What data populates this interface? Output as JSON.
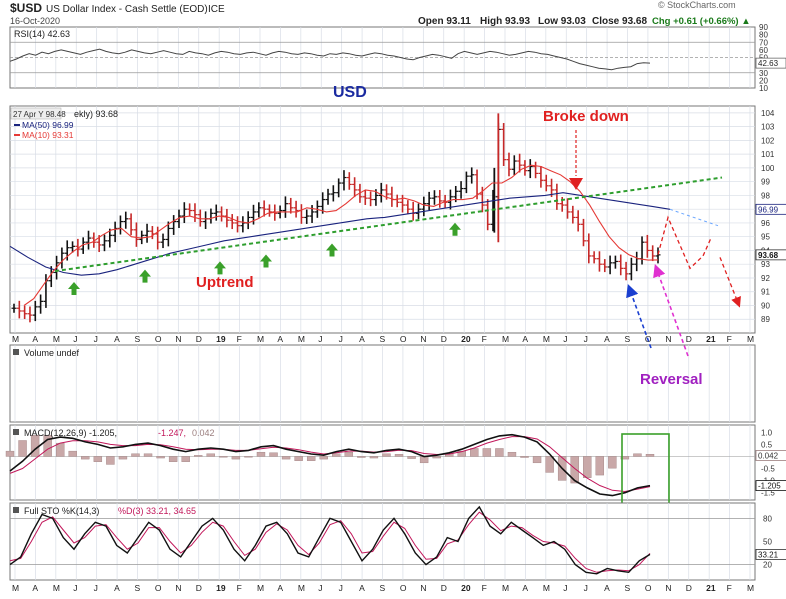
{
  "header": {
    "symbol": "$USD",
    "name": "US Dollar Index - Cash Settle (EOD)",
    "exchange": "ICE",
    "date": "16-Oct-2020",
    "open": "Open 93.11",
    "high": "High 93.93",
    "low": "Low 93.03",
    "close": "Close 93.68",
    "change": "Chg +0.61 (+0.66%) ▲",
    "watermark": "© StockCharts.com"
  },
  "colors": {
    "price_up": "#000000",
    "ma50": "#1a237e",
    "ma10": "#e53935",
    "uptrend_line": "#2e9e2e",
    "annotation_red": "#e02020",
    "arrow_green": "#3aa02a",
    "arrow_blue": "#1a3fd0",
    "arrow_magenta": "#e030d0",
    "macd_hist": "#c9a8a8",
    "box_green": "#3aa02a"
  },
  "chart_data": [
    {
      "type": "line",
      "panel": "rsi",
      "legend": "RSI(14) 42.63",
      "ylim": [
        10,
        90
      ],
      "ticks": [
        "90",
        "80",
        "70",
        "60",
        "50",
        "40",
        "30",
        "20",
        "10"
      ],
      "last_value_label": "42.63",
      "reference_lines": [
        70,
        50,
        30
      ],
      "values": [
        45,
        48,
        52,
        55,
        53,
        57,
        55,
        58,
        60,
        58,
        56,
        54,
        57,
        59,
        61,
        58,
        56,
        55,
        57,
        60,
        58,
        56,
        55,
        57,
        59,
        57,
        55,
        54,
        58,
        56,
        55,
        53,
        56,
        58,
        57,
        55,
        54,
        56,
        57,
        55,
        53,
        56,
        58,
        57,
        55,
        54,
        56,
        55,
        53,
        52,
        55,
        54,
        56,
        55,
        53,
        52,
        54,
        56,
        55,
        53,
        52,
        50,
        48,
        47,
        50,
        52,
        54,
        53,
        51,
        49,
        55,
        58,
        56,
        54,
        56,
        58,
        57,
        55,
        53,
        54,
        56,
        58,
        57,
        55,
        54,
        52,
        50,
        48,
        45,
        42,
        40,
        38,
        36,
        35,
        34,
        36,
        37,
        38,
        42,
        43,
        42.63
      ]
    },
    {
      "type": "bar",
      "panel": "price",
      "title": "USD",
      "legend_date": "27 Apr Y 98.48",
      "legend_weekly": "ekly) 93.68",
      "legend_ma50": "MA(50) 96.99",
      "legend_ma10": "MA(10) 93.31",
      "ylim": [
        88,
        104.5
      ],
      "ticks": [
        "104",
        "103",
        "102",
        "101",
        "100",
        "99",
        "98",
        "97",
        "96",
        "95",
        "94",
        "93",
        "92",
        "91",
        "90",
        "89"
      ],
      "last_price_label": "93.68",
      "ma50_label": "96.99",
      "x_labels": [
        "M",
        "A",
        "M",
        "J",
        "J",
        "A",
        "S",
        "O",
        "N",
        "D",
        "19",
        "F",
        "M",
        "A",
        "M",
        "J",
        "J",
        "A",
        "S",
        "O",
        "N",
        "D",
        "20",
        "F",
        "M",
        "A",
        "M",
        "J",
        "J",
        "A",
        "S",
        "O",
        "N",
        "D",
        "21",
        "F",
        "M"
      ],
      "closes": [
        89.8,
        89.6,
        89.4,
        89.3,
        89.9,
        90.3,
        91.8,
        92.4,
        93.1,
        93.8,
        94.2,
        94.3,
        94.1,
        94.6,
        94.9,
        94.6,
        94.4,
        94.7,
        95.1,
        95.6,
        96.1,
        96.3,
        95.5,
        94.8,
        95.1,
        95.4,
        95.2,
        94.6,
        94.8,
        95.6,
        96.1,
        96.5,
        97.0,
        96.9,
        96.6,
        96.1,
        96.3,
        96.7,
        96.8,
        96.5,
        96.2,
        96.0,
        95.8,
        96.0,
        96.4,
        96.8,
        97.1,
        97.0,
        96.8,
        96.7,
        96.9,
        97.4,
        97.1,
        96.9,
        96.4,
        96.5,
        96.8,
        97.2,
        97.7,
        98.1,
        98.2,
        98.9,
        99.3,
        98.8,
        98.4,
        97.9,
        97.8,
        97.7,
        98.0,
        98.4,
        98.1,
        97.7,
        97.5,
        97.3,
        97.0,
        96.7,
        97.0,
        97.4,
        97.8,
        97.9,
        97.6,
        97.5,
        97.9,
        98.3,
        98.5,
        99.4,
        99.5,
        98.1,
        97.3,
        95.9,
        97.9,
        102.8,
        100.6,
        99.9,
        100.5,
        100.2,
        99.8,
        100.1,
        99.6,
        99.1,
        98.7,
        98.4,
        97.4,
        97.3,
        96.8,
        96.4,
        95.9,
        94.7,
        93.6,
        93.4,
        93.0,
        92.8,
        93.1,
        93.2,
        92.7,
        92.3,
        93.0,
        93.4,
        94.6,
        94.0,
        93.6,
        93.68
      ],
      "ma50": [
        94.3,
        93.5,
        92.8,
        92.4,
        92.2,
        92.3,
        92.6,
        93.0,
        93.4,
        93.8,
        94.1,
        94.4,
        94.7,
        94.9,
        95.1,
        95.3,
        95.5,
        95.7,
        95.9,
        96.1,
        96.3,
        96.4,
        96.6,
        96.8,
        97.0,
        97.2,
        97.4,
        97.6,
        97.8,
        97.9,
        98.0,
        98.2,
        98.0,
        97.8,
        97.6,
        97.4,
        97.2,
        96.99
      ],
      "ma10": [
        90.0,
        90.5,
        91.5,
        92.5,
        93.3,
        93.9,
        94.4,
        94.6,
        95.1,
        95.5,
        95.6,
        95.0,
        94.9,
        95.0,
        95.5,
        96.0,
        96.4,
        96.5,
        96.3,
        96.3,
        96.5,
        96.4,
        96.1,
        96.0,
        96.3,
        96.7,
        96.8,
        96.8,
        96.8,
        97.1,
        97.0,
        96.8,
        96.9,
        97.4,
        98.0,
        98.4,
        98.3,
        97.9,
        97.7,
        97.8,
        97.6,
        97.3,
        97.2,
        97.5,
        97.7,
        97.7,
        97.8,
        98.3,
        98.9,
        98.9,
        99.3,
        99.9,
        100.2,
        100.1,
        99.8,
        99.5,
        99.0,
        98.3,
        97.3,
        96.1,
        95.0,
        94.2,
        93.7,
        93.4,
        93.3,
        93.31
      ],
      "annotations": [
        "Broke down",
        "Uptrend",
        "Reversal"
      ]
    },
    {
      "type": "bar",
      "panel": "volume",
      "legend": "Volume undef",
      "values": []
    },
    {
      "type": "line",
      "panel": "macd",
      "legend_prefix": "MACD(12,26,9) -1.205,",
      "legend_signal": "-1.247,",
      "legend_hist": "0.042",
      "ylim": [
        -1.8,
        1.3
      ],
      "ticks": [
        "1.0",
        "0.5",
        "0.0",
        "-0.5",
        "-1.0",
        "-1.5"
      ],
      "value_label_hist": "0.042",
      "value_label_macd": "-1.205",
      "macd": [
        -0.6,
        -0.2,
        0.3,
        0.7,
        0.8,
        0.75,
        0.6,
        0.5,
        0.35,
        0.4,
        0.5,
        0.55,
        0.45,
        0.3,
        0.2,
        0.3,
        0.35,
        0.3,
        0.2,
        0.25,
        0.4,
        0.45,
        0.3,
        0.2,
        0.1,
        0.05,
        0.2,
        0.3,
        0.2,
        0.15,
        0.25,
        0.3,
        0.2,
        0.0,
        0.05,
        0.15,
        0.3,
        0.5,
        0.7,
        0.85,
        0.9,
        0.8,
        0.6,
        0.1,
        -0.5,
        -1.0,
        -1.3,
        -1.55,
        -1.62,
        -1.5,
        -1.3,
        -1.205
      ],
      "signal": [
        -0.7,
        -0.5,
        -0.1,
        0.3,
        0.55,
        0.65,
        0.65,
        0.6,
        0.5,
        0.45,
        0.45,
        0.5,
        0.48,
        0.4,
        0.3,
        0.28,
        0.3,
        0.3,
        0.25,
        0.25,
        0.32,
        0.38,
        0.35,
        0.28,
        0.18,
        0.1,
        0.15,
        0.22,
        0.22,
        0.18,
        0.2,
        0.26,
        0.24,
        0.12,
        0.08,
        0.1,
        0.2,
        0.35,
        0.55,
        0.7,
        0.82,
        0.82,
        0.72,
        0.4,
        -0.05,
        -0.5,
        -0.9,
        -1.2,
        -1.4,
        -1.45,
        -1.35,
        -1.247
      ]
    },
    {
      "type": "line",
      "panel": "stochastic",
      "legend_prefix": "Full STO %K(14,3)",
      "legend_d": "%D(3) 33.21, 34.65",
      "ylim": [
        0,
        100
      ],
      "ticks": [
        "80",
        "50",
        "20"
      ],
      "reference_lines": [
        80,
        20
      ],
      "value_label": "33.21",
      "pct_k": [
        20,
        30,
        60,
        85,
        80,
        55,
        40,
        60,
        75,
        70,
        45,
        35,
        55,
        75,
        65,
        40,
        30,
        50,
        70,
        80,
        65,
        40,
        25,
        45,
        70,
        75,
        60,
        35,
        30,
        55,
        80,
        75,
        50,
        25,
        40,
        65,
        80,
        60,
        35,
        20,
        30,
        55,
        50,
        80,
        95,
        70,
        60,
        75,
        65,
        55,
        45,
        50,
        40,
        20,
        10,
        8,
        15,
        12,
        10,
        25,
        33.21
      ],
      "pct_d": [
        25,
        28,
        50,
        75,
        82,
        65,
        48,
        55,
        70,
        72,
        55,
        40,
        48,
        68,
        68,
        50,
        35,
        45,
        62,
        75,
        70,
        50,
        32,
        40,
        62,
        73,
        65,
        45,
        33,
        48,
        72,
        77,
        60,
        35,
        37,
        57,
        75,
        67,
        45,
        27,
        28,
        47,
        52,
        72,
        88,
        78,
        64,
        70,
        68,
        58,
        50,
        48,
        44,
        28,
        15,
        10,
        12,
        13,
        12,
        20,
        34.65
      ]
    }
  ],
  "x_axis_bottom": [
    "M",
    "A",
    "M",
    "J",
    "J",
    "A",
    "S",
    "O",
    "N",
    "D",
    "19",
    "F",
    "M",
    "A",
    "M",
    "J",
    "J",
    "A",
    "S",
    "O",
    "N",
    "D",
    "20",
    "F",
    "M",
    "A",
    "M",
    "J",
    "J",
    "A",
    "S",
    "O",
    "N",
    "D",
    "21",
    "F",
    "M"
  ]
}
